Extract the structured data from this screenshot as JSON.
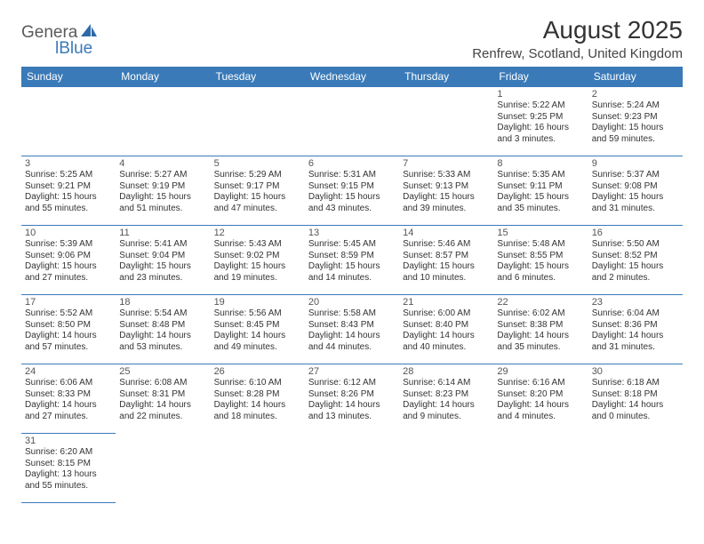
{
  "logo": {
    "text1": "Genera",
    "text2": "lBlue"
  },
  "title": "August 2025",
  "location": "Renfrew, Scotland, United Kingdom",
  "colors": {
    "header_bg": "#3a7ab8",
    "header_text": "#ffffff",
    "border": "#3a7ab8",
    "body_text": "#333333"
  },
  "weekdays": [
    "Sunday",
    "Monday",
    "Tuesday",
    "Wednesday",
    "Thursday",
    "Friday",
    "Saturday"
  ],
  "weeks": [
    [
      null,
      null,
      null,
      null,
      null,
      {
        "day": "1",
        "sunrise": "Sunrise: 5:22 AM",
        "sunset": "Sunset: 9:25 PM",
        "daylight1": "Daylight: 16 hours",
        "daylight2": "and 3 minutes."
      },
      {
        "day": "2",
        "sunrise": "Sunrise: 5:24 AM",
        "sunset": "Sunset: 9:23 PM",
        "daylight1": "Daylight: 15 hours",
        "daylight2": "and 59 minutes."
      }
    ],
    [
      {
        "day": "3",
        "sunrise": "Sunrise: 5:25 AM",
        "sunset": "Sunset: 9:21 PM",
        "daylight1": "Daylight: 15 hours",
        "daylight2": "and 55 minutes."
      },
      {
        "day": "4",
        "sunrise": "Sunrise: 5:27 AM",
        "sunset": "Sunset: 9:19 PM",
        "daylight1": "Daylight: 15 hours",
        "daylight2": "and 51 minutes."
      },
      {
        "day": "5",
        "sunrise": "Sunrise: 5:29 AM",
        "sunset": "Sunset: 9:17 PM",
        "daylight1": "Daylight: 15 hours",
        "daylight2": "and 47 minutes."
      },
      {
        "day": "6",
        "sunrise": "Sunrise: 5:31 AM",
        "sunset": "Sunset: 9:15 PM",
        "daylight1": "Daylight: 15 hours",
        "daylight2": "and 43 minutes."
      },
      {
        "day": "7",
        "sunrise": "Sunrise: 5:33 AM",
        "sunset": "Sunset: 9:13 PM",
        "daylight1": "Daylight: 15 hours",
        "daylight2": "and 39 minutes."
      },
      {
        "day": "8",
        "sunrise": "Sunrise: 5:35 AM",
        "sunset": "Sunset: 9:11 PM",
        "daylight1": "Daylight: 15 hours",
        "daylight2": "and 35 minutes."
      },
      {
        "day": "9",
        "sunrise": "Sunrise: 5:37 AM",
        "sunset": "Sunset: 9:08 PM",
        "daylight1": "Daylight: 15 hours",
        "daylight2": "and 31 minutes."
      }
    ],
    [
      {
        "day": "10",
        "sunrise": "Sunrise: 5:39 AM",
        "sunset": "Sunset: 9:06 PM",
        "daylight1": "Daylight: 15 hours",
        "daylight2": "and 27 minutes."
      },
      {
        "day": "11",
        "sunrise": "Sunrise: 5:41 AM",
        "sunset": "Sunset: 9:04 PM",
        "daylight1": "Daylight: 15 hours",
        "daylight2": "and 23 minutes."
      },
      {
        "day": "12",
        "sunrise": "Sunrise: 5:43 AM",
        "sunset": "Sunset: 9:02 PM",
        "daylight1": "Daylight: 15 hours",
        "daylight2": "and 19 minutes."
      },
      {
        "day": "13",
        "sunrise": "Sunrise: 5:45 AM",
        "sunset": "Sunset: 8:59 PM",
        "daylight1": "Daylight: 15 hours",
        "daylight2": "and 14 minutes."
      },
      {
        "day": "14",
        "sunrise": "Sunrise: 5:46 AM",
        "sunset": "Sunset: 8:57 PM",
        "daylight1": "Daylight: 15 hours",
        "daylight2": "and 10 minutes."
      },
      {
        "day": "15",
        "sunrise": "Sunrise: 5:48 AM",
        "sunset": "Sunset: 8:55 PM",
        "daylight1": "Daylight: 15 hours",
        "daylight2": "and 6 minutes."
      },
      {
        "day": "16",
        "sunrise": "Sunrise: 5:50 AM",
        "sunset": "Sunset: 8:52 PM",
        "daylight1": "Daylight: 15 hours",
        "daylight2": "and 2 minutes."
      }
    ],
    [
      {
        "day": "17",
        "sunrise": "Sunrise: 5:52 AM",
        "sunset": "Sunset: 8:50 PM",
        "daylight1": "Daylight: 14 hours",
        "daylight2": "and 57 minutes."
      },
      {
        "day": "18",
        "sunrise": "Sunrise: 5:54 AM",
        "sunset": "Sunset: 8:48 PM",
        "daylight1": "Daylight: 14 hours",
        "daylight2": "and 53 minutes."
      },
      {
        "day": "19",
        "sunrise": "Sunrise: 5:56 AM",
        "sunset": "Sunset: 8:45 PM",
        "daylight1": "Daylight: 14 hours",
        "daylight2": "and 49 minutes."
      },
      {
        "day": "20",
        "sunrise": "Sunrise: 5:58 AM",
        "sunset": "Sunset: 8:43 PM",
        "daylight1": "Daylight: 14 hours",
        "daylight2": "and 44 minutes."
      },
      {
        "day": "21",
        "sunrise": "Sunrise: 6:00 AM",
        "sunset": "Sunset: 8:40 PM",
        "daylight1": "Daylight: 14 hours",
        "daylight2": "and 40 minutes."
      },
      {
        "day": "22",
        "sunrise": "Sunrise: 6:02 AM",
        "sunset": "Sunset: 8:38 PM",
        "daylight1": "Daylight: 14 hours",
        "daylight2": "and 35 minutes."
      },
      {
        "day": "23",
        "sunrise": "Sunrise: 6:04 AM",
        "sunset": "Sunset: 8:36 PM",
        "daylight1": "Daylight: 14 hours",
        "daylight2": "and 31 minutes."
      }
    ],
    [
      {
        "day": "24",
        "sunrise": "Sunrise: 6:06 AM",
        "sunset": "Sunset: 8:33 PM",
        "daylight1": "Daylight: 14 hours",
        "daylight2": "and 27 minutes."
      },
      {
        "day": "25",
        "sunrise": "Sunrise: 6:08 AM",
        "sunset": "Sunset: 8:31 PM",
        "daylight1": "Daylight: 14 hours",
        "daylight2": "and 22 minutes."
      },
      {
        "day": "26",
        "sunrise": "Sunrise: 6:10 AM",
        "sunset": "Sunset: 8:28 PM",
        "daylight1": "Daylight: 14 hours",
        "daylight2": "and 18 minutes."
      },
      {
        "day": "27",
        "sunrise": "Sunrise: 6:12 AM",
        "sunset": "Sunset: 8:26 PM",
        "daylight1": "Daylight: 14 hours",
        "daylight2": "and 13 minutes."
      },
      {
        "day": "28",
        "sunrise": "Sunrise: 6:14 AM",
        "sunset": "Sunset: 8:23 PM",
        "daylight1": "Daylight: 14 hours",
        "daylight2": "and 9 minutes."
      },
      {
        "day": "29",
        "sunrise": "Sunrise: 6:16 AM",
        "sunset": "Sunset: 8:20 PM",
        "daylight1": "Daylight: 14 hours",
        "daylight2": "and 4 minutes."
      },
      {
        "day": "30",
        "sunrise": "Sunrise: 6:18 AM",
        "sunset": "Sunset: 8:18 PM",
        "daylight1": "Daylight: 14 hours",
        "daylight2": "and 0 minutes."
      }
    ],
    [
      {
        "day": "31",
        "sunrise": "Sunrise: 6:20 AM",
        "sunset": "Sunset: 8:15 PM",
        "daylight1": "Daylight: 13 hours",
        "daylight2": "and 55 minutes."
      },
      null,
      null,
      null,
      null,
      null,
      null
    ]
  ]
}
